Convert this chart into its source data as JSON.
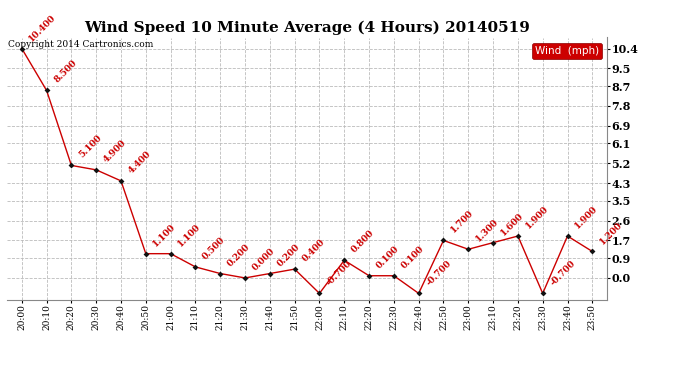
{
  "title": "Wind Speed 10 Minute Average (4 Hours) 20140519",
  "copyright": "Copyright 2014 Cartronics.com",
  "legend_label": "Wind  (mph)",
  "x_labels": [
    "20:00",
    "20:10",
    "20:20",
    "20:30",
    "20:40",
    "20:50",
    "21:00",
    "21:10",
    "21:20",
    "21:30",
    "21:40",
    "21:50",
    "22:00",
    "22:10",
    "22:20",
    "22:30",
    "22:40",
    "22:50",
    "23:00",
    "23:10",
    "23:20",
    "23:30",
    "23:40",
    "23:50"
  ],
  "y_values": [
    10.4,
    8.5,
    5.1,
    4.9,
    4.4,
    1.1,
    1.1,
    0.5,
    0.2,
    0.0,
    0.2,
    0.4,
    -0.7,
    0.8,
    0.1,
    0.1,
    -0.7,
    1.7,
    1.3,
    1.6,
    1.9,
    -0.7,
    1.9,
    1.2
  ],
  "yticks": [
    0.0,
    0.9,
    1.7,
    2.6,
    3.5,
    4.3,
    5.2,
    6.1,
    6.9,
    7.8,
    8.7,
    9.5,
    10.4
  ],
  "ylim": [
    -1.0,
    10.9
  ],
  "xlim_lo": -0.6,
  "xlim_hi": 23.6,
  "line_color": "#cc0000",
  "marker_color": "#111111",
  "label_color": "#cc0000",
  "background_color": "#ffffff",
  "grid_color": "#bbbbbb",
  "title_fontsize": 11,
  "annotation_fontsize": 6.5,
  "xlabel_fontsize": 6.5,
  "ylabel_fontsize": 8,
  "copyright_fontsize": 6.5,
  "legend_fontsize": 7.5
}
